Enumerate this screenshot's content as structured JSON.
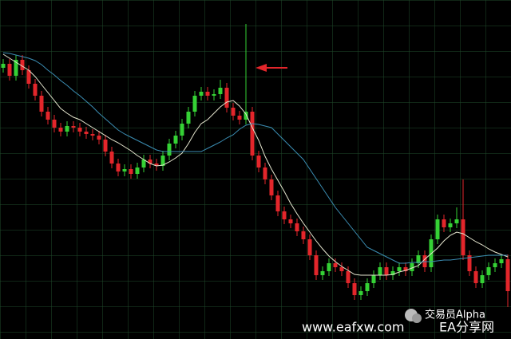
{
  "chart_data": {
    "type": "candlestick",
    "ylim": [
      0,
      425
    ],
    "up_color": "#35d135",
    "down_color": "#e3262b",
    "open": [
      340,
      345,
      330,
      350,
      337,
      320,
      305,
      285,
      275,
      265,
      260,
      267,
      265,
      260,
      257,
      255,
      250,
      235,
      220,
      210,
      213,
      207,
      215,
      225,
      220,
      217,
      230,
      245,
      255,
      270,
      285,
      305,
      310,
      305,
      307,
      315,
      290,
      280,
      275,
      285,
      230,
      215,
      200,
      180,
      160,
      150,
      145,
      135,
      125,
      105,
      80,
      85,
      95,
      90,
      85,
      70,
      55,
      60,
      70,
      80,
      90,
      80,
      85,
      90,
      85,
      95,
      105,
      90,
      125,
      150,
      140,
      145,
      150,
      105,
      85,
      70,
      80,
      90,
      95,
      100
    ],
    "high": [
      351,
      351,
      356,
      356,
      343,
      326,
      311,
      291,
      281,
      271,
      273,
      273,
      271,
      266,
      263,
      261,
      256,
      241,
      226,
      219,
      219,
      221,
      231,
      231,
      226,
      236,
      251,
      261,
      276,
      291,
      311,
      316,
      316,
      313,
      325,
      321,
      296,
      286,
      395,
      291,
      236,
      221,
      206,
      186,
      166,
      156,
      151,
      141,
      131,
      111,
      91,
      101,
      101,
      96,
      91,
      76,
      66,
      76,
      86,
      96,
      96,
      91,
      96,
      96,
      101,
      111,
      111,
      131,
      156,
      156,
      151,
      165,
      200,
      111,
      91,
      86,
      96,
      101,
      106,
      106
    ],
    "low": [
      334,
      324,
      324,
      331,
      314,
      299,
      279,
      269,
      259,
      254,
      254,
      259,
      254,
      251,
      249,
      244,
      229,
      214,
      204,
      204,
      201,
      201,
      209,
      214,
      211,
      211,
      224,
      239,
      249,
      264,
      279,
      299,
      299,
      299,
      301,
      284,
      274,
      269,
      269,
      224,
      209,
      194,
      174,
      154,
      144,
      139,
      129,
      119,
      99,
      74,
      74,
      79,
      84,
      79,
      64,
      49,
      49,
      54,
      64,
      74,
      74,
      74,
      79,
      79,
      79,
      89,
      84,
      84,
      119,
      134,
      134,
      139,
      99,
      79,
      64,
      64,
      74,
      84,
      89,
      40
    ],
    "close": [
      345,
      330,
      350,
      337,
      320,
      305,
      285,
      275,
      265,
      260,
      267,
      265,
      260,
      257,
      255,
      250,
      235,
      220,
      210,
      213,
      207,
      215,
      225,
      220,
      217,
      230,
      245,
      255,
      270,
      285,
      305,
      310,
      305,
      307,
      315,
      290,
      280,
      275,
      285,
      230,
      215,
      200,
      180,
      160,
      150,
      145,
      135,
      125,
      105,
      80,
      85,
      95,
      90,
      85,
      70,
      55,
      60,
      70,
      80,
      90,
      80,
      85,
      90,
      85,
      95,
      105,
      90,
      125,
      150,
      140,
      145,
      150,
      105,
      85,
      70,
      80,
      90,
      95,
      100,
      60
    ],
    "lines": [
      {
        "color": "#e6e6cf",
        "values": [
          357,
          352,
          347,
          342,
          337,
          329,
          319,
          309,
          299,
          289,
          283,
          278,
          275,
          270,
          265,
          260,
          255,
          250,
          246,
          241,
          236,
          230,
          225,
          220,
          217,
          218,
          222,
          227,
          233,
          245,
          259,
          270,
          275,
          283,
          291,
          297,
          299,
          292,
          282,
          265,
          249,
          229,
          213,
          199,
          185,
          170,
          157,
          145,
          134,
          123,
          113,
          104,
          97,
          91,
          86,
          81,
          80,
          80,
          80,
          80,
          80,
          81,
          84,
          86,
          89,
          92,
          100,
          107,
          114,
          123,
          130,
          134,
          132,
          127,
          122,
          118,
          113,
          109,
          106,
          103
        ]
      },
      {
        "color": "#3b8db3",
        "values": [
          359,
          358,
          356,
          354,
          352,
          349,
          344,
          337,
          331,
          324,
          318,
          311,
          305,
          298,
          291,
          283,
          276,
          269,
          262,
          257,
          253,
          249,
          245,
          241,
          237,
          235,
          235,
          235,
          235,
          235,
          235,
          235,
          239,
          243,
          247,
          252,
          256,
          263,
          268,
          270,
          269,
          267,
          265,
          257,
          249,
          241,
          233,
          225,
          213,
          201,
          189,
          177,
          165,
          155,
          145,
          135,
          125,
          115,
          111,
          107,
          103,
          99,
          95,
          95,
          96,
          96,
          97,
          97,
          98,
          99,
          99,
          100,
          101,
          102,
          103,
          104,
          105,
          105,
          105,
          105
        ]
      }
    ],
    "annotations": [
      "交易员Alpha",
      "www.eafxw.com",
      "EA分享网"
    ]
  }
}
